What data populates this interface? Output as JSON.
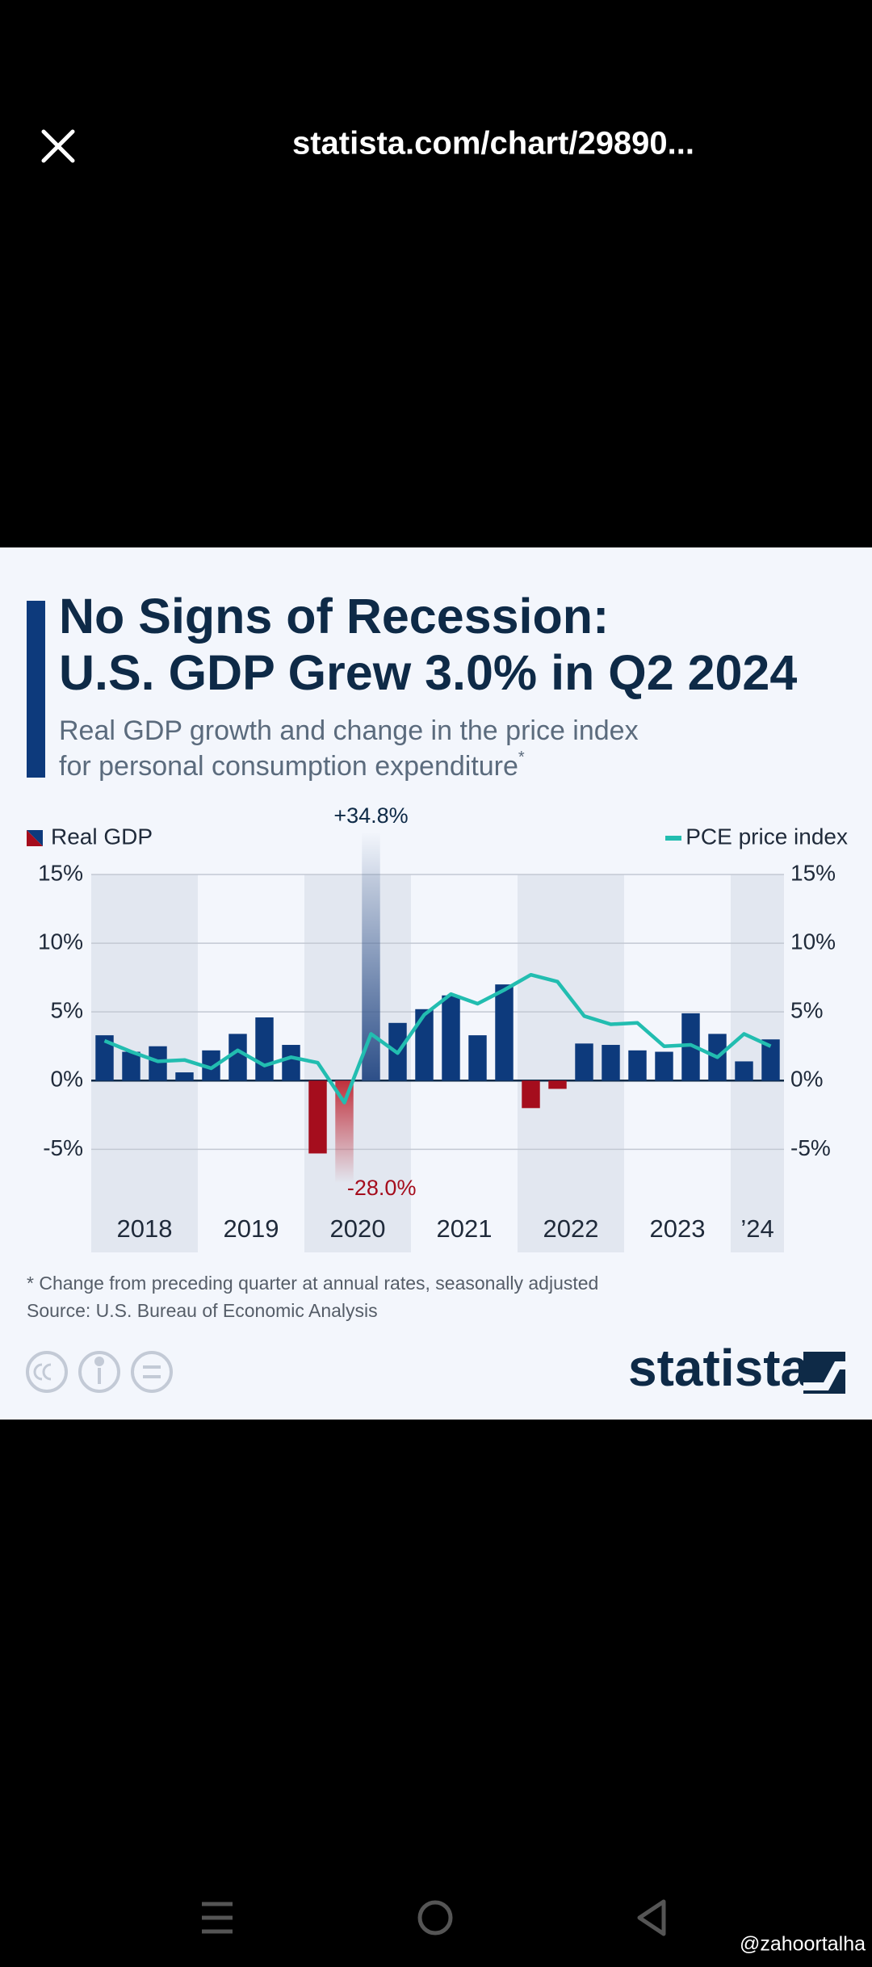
{
  "browser": {
    "url": "statista.com/chart/29890..."
  },
  "chart_data": {
    "type": "bar",
    "title": [
      "No Signs of Recession:",
      "U.S. GDP Grew 3.0% in Q2 2024"
    ],
    "subtitle": [
      "Real GDP growth and change in the price index",
      "for personal consumption expenditure"
    ],
    "subtitle_marker": "*",
    "categories": [
      null,
      null,
      null,
      null,
      null,
      null,
      null,
      null,
      null,
      null,
      null,
      null,
      null,
      null,
      null,
      null,
      null,
      null,
      null,
      null,
      null,
      null,
      null,
      null,
      null,
      null
    ],
    "year_labels": [
      "2018",
      "2019",
      "2020",
      "2021",
      "2022",
      "2023",
      "’24"
    ],
    "series": [
      {
        "name": "Real GDP",
        "color": "#0d3a7c",
        "negative_color": "#a50d1d",
        "values": [
          3.3,
          2.1,
          2.5,
          0.6,
          2.2,
          3.4,
          4.6,
          2.6,
          -5.3,
          -28.0,
          34.8,
          4.2,
          5.2,
          6.2,
          3.3,
          7.0,
          -2.0,
          -0.6,
          2.7,
          2.6,
          2.2,
          2.1,
          4.9,
          3.4,
          1.4,
          3.0
        ],
        "value_labels": [
          null,
          null,
          null,
          null,
          null,
          null,
          null,
          null,
          null,
          "-28.0%",
          "+34.8%",
          null,
          null,
          null,
          null,
          null,
          null,
          null,
          null,
          null,
          null,
          null,
          null,
          null,
          null,
          null
        ]
      },
      {
        "name": "PCE price index",
        "type": "line",
        "axis": "y2",
        "color": "#22bdb0",
        "values": [
          2.9,
          2.1,
          1.4,
          1.5,
          0.9,
          2.2,
          1.1,
          1.7,
          1.3,
          -1.6,
          3.4,
          2.0,
          4.8,
          6.3,
          5.6,
          6.6,
          7.7,
          7.2,
          4.7,
          4.1,
          4.2,
          2.5,
          2.6,
          1.7,
          3.4,
          2.5
        ]
      }
    ],
    "ylim": [
      -12.5,
      15
    ],
    "yticks": [
      {
        "value": -5,
        "label": "-5%"
      },
      {
        "value": 0,
        "label": "0%"
      },
      {
        "value": 5,
        "label": "5%"
      },
      {
        "value": 10,
        "label": "10%"
      },
      {
        "value": 15,
        "label": "15%"
      }
    ],
    "y2lim": [
      -12.5,
      15
    ],
    "y2ticks": [
      {
        "value": -5,
        "label": "-5%"
      },
      {
        "value": 0,
        "label": "0%"
      },
      {
        "value": 5,
        "label": "5%"
      },
      {
        "value": 10,
        "label": "10%"
      },
      {
        "value": 15,
        "label": "15%"
      }
    ],
    "grid": true,
    "legend": "top"
  },
  "footnote": "* Change from preceding quarter at annual rates, seasonally adjusted",
  "source": "Source: U.S. Bureau of Economic Analysis",
  "logo": "statista",
  "watermark": "@zahoortalha"
}
